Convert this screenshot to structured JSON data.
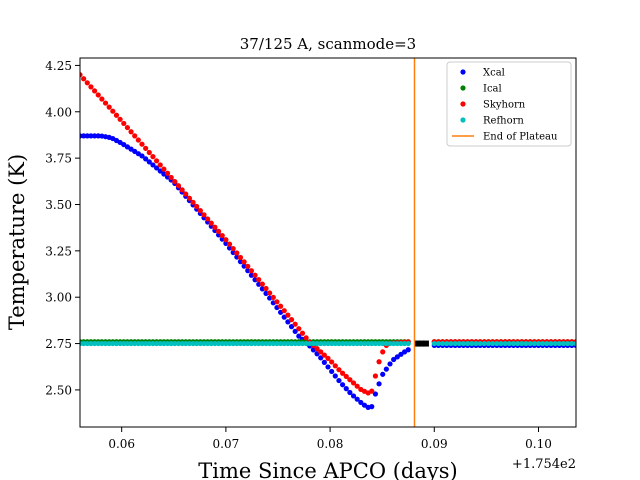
{
  "chart_data": {
    "type": "scatter",
    "title": "37/125 A, scanmode=3",
    "xlabel": "Time Since APCO (days)",
    "ylabel": "Temperature (K)",
    "x_offset_label": "+1.754e2",
    "xlim": [
      0.056,
      0.1036
    ],
    "ylim": [
      2.3,
      4.29
    ],
    "xticks": [
      0.06,
      0.07,
      0.08,
      0.09,
      0.1
    ],
    "xtick_labels": [
      "0.06",
      "0.07",
      "0.08",
      "0.09",
      "0.10"
    ],
    "yticks": [
      2.5,
      2.75,
      3.0,
      3.25,
      3.5,
      3.75,
      4.0,
      4.25
    ],
    "ytick_labels": [
      "2.50",
      "2.75",
      "3.00",
      "3.25",
      "3.50",
      "3.75",
      "4.00",
      "4.25"
    ],
    "grid": false,
    "legend_position": "top-right",
    "vline": {
      "name": "End of Plateau",
      "x": 0.0881,
      "color": "#ff7f0e"
    },
    "series": [
      {
        "name": "Xcal",
        "color": "#0000ff",
        "segments": [
          {
            "points": [
              [
                0.056,
                3.87
              ],
              [
                0.058,
                3.87
              ],
              [
                0.059,
                3.86
              ],
              [
                0.06,
                3.83
              ],
              [
                0.062,
                3.76
              ],
              [
                0.065,
                3.62
              ],
              [
                0.07,
                3.29
              ],
              [
                0.074,
                3.01
              ],
              [
                0.077,
                2.79
              ],
              [
                0.078,
                2.74
              ],
              [
                0.079,
                2.68
              ],
              [
                0.08,
                2.61
              ],
              [
                0.081,
                2.54
              ],
              [
                0.082,
                2.48
              ],
              [
                0.083,
                2.43
              ],
              [
                0.0836,
                2.405
              ],
              [
                0.084,
                2.41
              ],
              [
                0.0843,
                2.47
              ],
              [
                0.085,
                2.58
              ],
              [
                0.086,
                2.66
              ],
              [
                0.087,
                2.7
              ],
              [
                0.0876,
                2.72
              ]
            ],
            "step": 0.00035
          },
          {
            "points": [
              [
                0.09,
                2.74
              ],
              [
                0.1036,
                2.74
              ]
            ],
            "step": 0.0004
          }
        ]
      },
      {
        "name": "Ical",
        "color": "#008000",
        "segments": [
          {
            "points": [
              [
                0.056,
                2.76
              ],
              [
                0.0876,
                2.76
              ]
            ],
            "step": 0.00035
          },
          {
            "points": [
              [
                0.09,
                2.76
              ],
              [
                0.1036,
                2.76
              ]
            ],
            "step": 0.0004
          }
        ]
      },
      {
        "name": "Skyhorn",
        "color": "#ff0000",
        "segments": [
          {
            "points": [
              [
                0.056,
                4.2
              ],
              [
                0.06,
                3.95
              ],
              [
                0.07,
                3.31
              ],
              [
                0.076,
                2.9
              ],
              [
                0.078,
                2.76
              ],
              [
                0.08,
                2.66
              ],
              [
                0.081,
                2.6
              ],
              [
                0.082,
                2.55
              ],
              [
                0.083,
                2.5
              ],
              [
                0.0838,
                2.48
              ],
              [
                0.0841,
                2.5
              ],
              [
                0.0845,
                2.62
              ],
              [
                0.085,
                2.7
              ],
              [
                0.0855,
                2.75
              ],
              [
                0.0876,
                2.76
              ]
            ],
            "step": 0.00035
          },
          {
            "points": [
              [
                0.09,
                2.76
              ],
              [
                0.1036,
                2.76
              ]
            ],
            "step": 0.0004
          }
        ]
      },
      {
        "name": "Refhorn",
        "color": "#00bfbf",
        "segments": [
          {
            "points": [
              [
                0.056,
                2.75
              ],
              [
                0.0876,
                2.75
              ]
            ],
            "step": 0.00035
          },
          {
            "points": [
              [
                0.09,
                2.75
              ],
              [
                0.1036,
                2.75
              ]
            ],
            "step": 0.0004
          }
        ]
      }
    ],
    "gap_markers": {
      "color": "#000000",
      "points": [
        [
          0.0884,
          2.75
        ],
        [
          0.0888,
          2.75
        ],
        [
          0.0892,
          2.75
        ]
      ]
    }
  }
}
